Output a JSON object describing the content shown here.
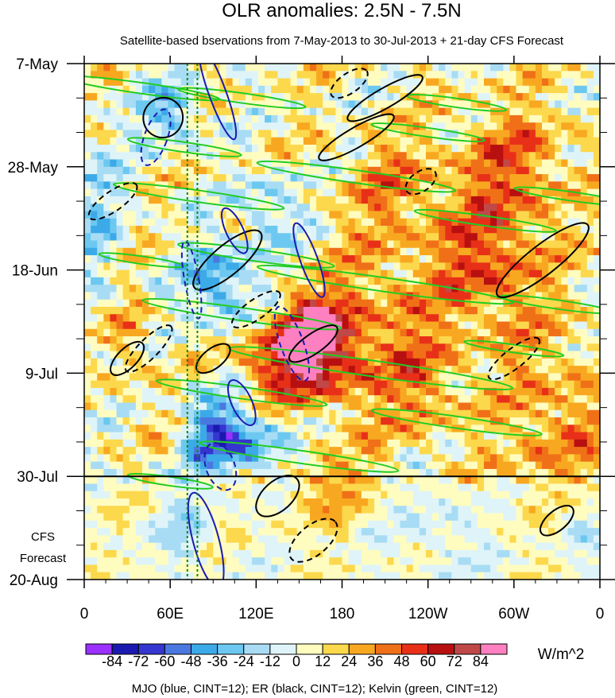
{
  "chart_data": {
    "type": "heatmap",
    "title": "OLR anomalies: 2.5N - 7.5N",
    "subtitle": "Satellite-based bservations from 7-May-2013 to 30-Jul-2013 + 21-day CFS Forecast",
    "x_tick_labels": [
      "0",
      "60E",
      "120E",
      "180",
      "120W",
      "60W",
      "0"
    ],
    "x_ticks_deg_east": [
      0,
      60,
      120,
      180,
      240,
      300,
      360
    ],
    "y_tick_labels": [
      "7-May",
      "28-May",
      "18-Jun",
      "9-Jul",
      "30-Jul",
      "20-Aug"
    ],
    "y_ticks_day": [
      0,
      21,
      42,
      63,
      84,
      105
    ],
    "forecast_label_lines": [
      "CFS",
      "Forecast"
    ],
    "forecast_start_day": 84,
    "colorbar": {
      "unit": "W/m^2",
      "levels": [
        -84,
        -72,
        -60,
        -48,
        -36,
        -24,
        -12,
        0,
        12,
        24,
        36,
        48,
        60,
        72,
        84
      ],
      "level_labels": [
        "-84",
        "-72",
        "-60",
        "-48",
        "-36",
        "-24",
        "-12",
        "0",
        "12",
        "24",
        "36",
        "48",
        "60",
        "72",
        "84"
      ],
      "colors": [
        "#9b30ff",
        "#1a1ab0",
        "#3535d0",
        "#4a78e0",
        "#3caae8",
        "#6cc8f0",
        "#a8dcf5",
        "#dff4f8",
        "#fffcc0",
        "#fcd84c",
        "#f8a820",
        "#f07018",
        "#e83018",
        "#b81010",
        "#c04848",
        "#ff80c0"
      ]
    },
    "footer": "MJO (blue, CINT=12); ER (black, CINT=12); Kelvin (green, CINT=12)",
    "series": [
      {
        "name": "MJO",
        "color": "#1a1ab0"
      },
      {
        "name": "ER",
        "color": "#000000"
      },
      {
        "name": "Kelvin",
        "color": "#22cc22"
      }
    ]
  }
}
